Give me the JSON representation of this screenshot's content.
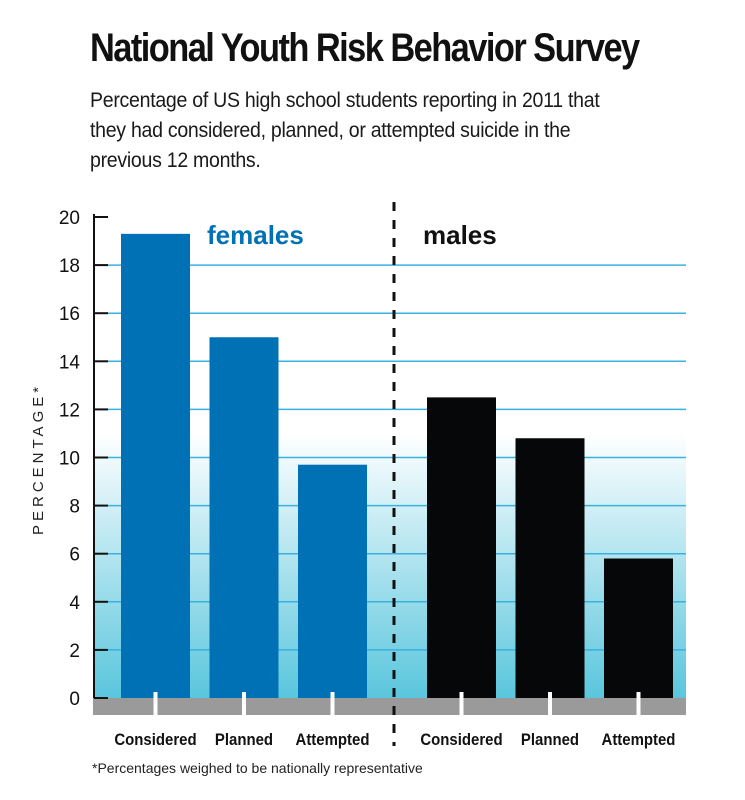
{
  "title": "National Youth Risk Behavior Survey",
  "subtitle": "Percentage of US high school students reporting in 2011 that they had considered, planned, or attempted suicide in the previous 12 months.",
  "footnote": "*Percentages weighed to be nationally representative",
  "colors": {
    "females": "#0071b5",
    "males": "#060708",
    "grid": "#39b1e0",
    "base": "#9a9a9a",
    "gradient_bottom": "#5ac6dd"
  },
  "chart_data": {
    "type": "bar",
    "title": "National Youth Risk Behavior Survey",
    "xlabel": "",
    "ylabel": "PERCENTAGE*",
    "ylim": [
      0,
      20
    ],
    "yticks": [
      0,
      2,
      4,
      6,
      8,
      10,
      12,
      14,
      16,
      18,
      20
    ],
    "grid": true,
    "groups": [
      {
        "name": "females",
        "categories": [
          "Considered",
          "Planned",
          "Attempted"
        ],
        "values": [
          19.3,
          15.0,
          9.7
        ]
      },
      {
        "name": "males",
        "categories": [
          "Considered",
          "Planned",
          "Attempted"
        ],
        "values": [
          12.5,
          10.8,
          5.8
        ]
      }
    ]
  }
}
